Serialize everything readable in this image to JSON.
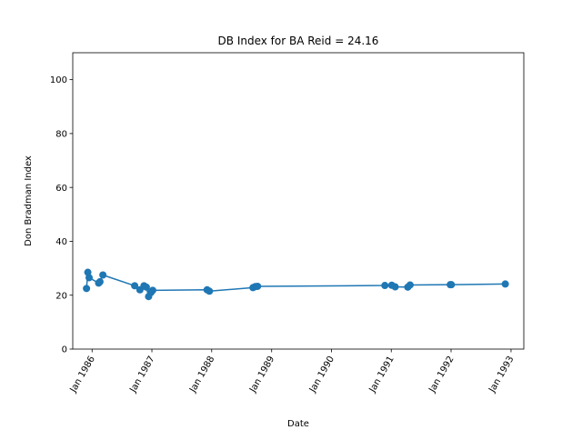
{
  "chart_data": {
    "type": "line",
    "title": "DB Index for BA Reid = 24.16",
    "xlabel": "Date",
    "ylabel": "Don Bradman Index",
    "xlim": [
      "1985-09-05",
      "1993-03-20"
    ],
    "ylim": [
      0,
      110
    ],
    "yticks": [
      0,
      20,
      40,
      60,
      80,
      100
    ],
    "xticks": [
      {
        "date": "1986-01-01",
        "label": "Jan 1986"
      },
      {
        "date": "1987-01-01",
        "label": "Jan 1987"
      },
      {
        "date": "1988-01-01",
        "label": "Jan 1988"
      },
      {
        "date": "1989-01-01",
        "label": "Jan 1989"
      },
      {
        "date": "1990-01-01",
        "label": "Jan 1990"
      },
      {
        "date": "1991-01-01",
        "label": "Jan 1991"
      },
      {
        "date": "1992-01-01",
        "label": "Jan 1992"
      },
      {
        "date": "1993-01-01",
        "label": "Jan 1993"
      }
    ],
    "grid": false,
    "color": "#1f77b4",
    "series": [
      {
        "points": [
          {
            "x": "1985-11-28",
            "y": 22.5
          },
          {
            "x": "1985-12-06",
            "y": 28.5
          },
          {
            "x": "1985-12-14",
            "y": 26.5
          },
          {
            "x": "1986-02-10",
            "y": 24.5
          },
          {
            "x": "1986-02-18",
            "y": 25.0
          },
          {
            "x": "1986-03-08",
            "y": 27.5
          },
          {
            "x": "1986-09-18",
            "y": 23.5
          },
          {
            "x": "1986-10-20",
            "y": 22.0
          },
          {
            "x": "1986-11-14",
            "y": 23.5
          },
          {
            "x": "1986-11-28",
            "y": 23.0
          },
          {
            "x": "1986-12-12",
            "y": 19.5
          },
          {
            "x": "1986-12-26",
            "y": 21.0
          },
          {
            "x": "1987-01-06",
            "y": 21.8
          },
          {
            "x": "1987-12-04",
            "y": 22.0
          },
          {
            "x": "1987-12-18",
            "y": 21.5
          },
          {
            "x": "1988-09-09",
            "y": 22.8
          },
          {
            "x": "1988-09-23",
            "y": 23.2
          },
          {
            "x": "1988-10-07",
            "y": 23.3
          },
          {
            "x": "1990-11-23",
            "y": 23.6
          },
          {
            "x": "1991-01-04",
            "y": 23.7
          },
          {
            "x": "1991-01-25",
            "y": 23.1
          },
          {
            "x": "1991-04-12",
            "y": 23.0
          },
          {
            "x": "1991-04-26",
            "y": 23.8
          },
          {
            "x": "1991-12-27",
            "y": 23.9
          },
          {
            "x": "1992-01-03",
            "y": 23.9
          },
          {
            "x": "1992-11-27",
            "y": 24.16
          }
        ]
      }
    ]
  }
}
